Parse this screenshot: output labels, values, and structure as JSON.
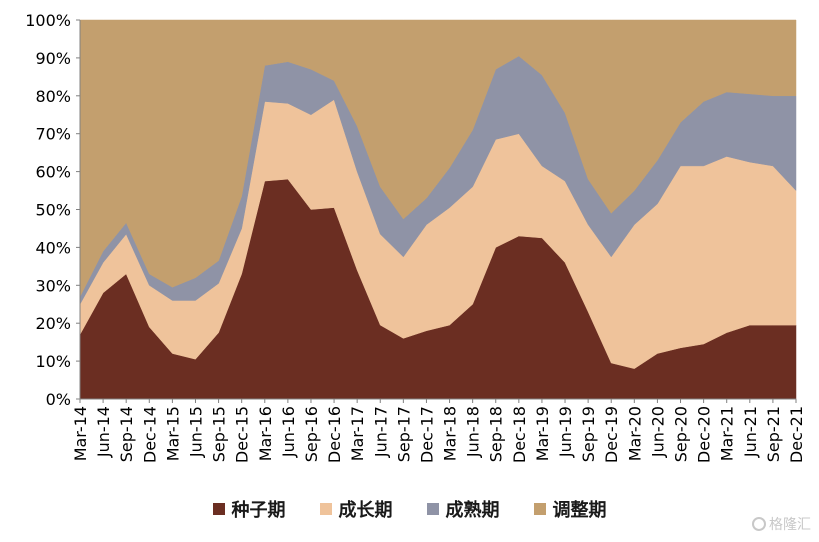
{
  "chart_data": {
    "type": "area",
    "stacked": true,
    "categories": [
      "Mar-14",
      "Jun-14",
      "Sep-14",
      "Dec-14",
      "Mar-15",
      "Jun-15",
      "Sep-15",
      "Dec-15",
      "Mar-16",
      "Jun-16",
      "Sep-16",
      "Dec-16",
      "Mar-17",
      "Jun-17",
      "Sep-17",
      "Dec-17",
      "Mar-18",
      "Jun-18",
      "Sep-18",
      "Dec-18",
      "Mar-19",
      "Jun-19",
      "Sep-19",
      "Dec-19",
      "Mar-20",
      "Jun-20",
      "Sep-20",
      "Dec-20",
      "Mar-21",
      "Jun-21",
      "Sep-21",
      "Dec-21"
    ],
    "y_tick_labels": [
      "0%",
      "10%",
      "20%",
      "30%",
      "40%",
      "50%",
      "60%",
      "70%",
      "80%",
      "90%",
      "100%"
    ],
    "ylim": [
      0,
      100
    ],
    "grid": false,
    "legend_position": "bottom",
    "series": [
      {
        "name": "种子期",
        "color": "#6B2E22",
        "values": [
          17,
          28,
          33,
          19,
          12,
          10.5,
          17.5,
          33,
          57.5,
          58,
          50,
          50.5,
          34,
          19.5,
          16,
          18,
          19.5,
          25,
          40,
          43,
          42.5,
          36,
          23,
          9.5,
          8,
          12,
          13.5,
          14.5,
          17.5,
          19.5,
          19.5,
          19.5
        ]
      },
      {
        "name": "成长期",
        "color": "#EFC39B",
        "values": [
          8,
          8,
          10.5,
          11,
          14,
          15.5,
          13,
          12,
          21,
          20,
          25,
          28.5,
          26,
          24,
          21.5,
          28,
          31,
          31,
          28.5,
          27,
          19,
          21.5,
          23,
          28,
          38,
          39.5,
          48,
          47,
          46.5,
          43,
          42,
          35.5
        ]
      },
      {
        "name": "成熟期",
        "color": "#8F93A6",
        "values": [
          2,
          3,
          3,
          3,
          3.5,
          6,
          6,
          8.5,
          9.5,
          11,
          12,
          5,
          12,
          12.5,
          10,
          7,
          10.5,
          15,
          18.5,
          20.5,
          24,
          18,
          12,
          11.5,
          9,
          11.5,
          11.5,
          17,
          17,
          18,
          18.5,
          25
        ]
      },
      {
        "name": "调整期",
        "color": "#C39F6E",
        "values": [
          73,
          61,
          53.5,
          67,
          70.5,
          68,
          63.5,
          46.5,
          12,
          11,
          13,
          16,
          28,
          44,
          52.5,
          47,
          39,
          29,
          13,
          9.5,
          14.5,
          24.5,
          42,
          51,
          45,
          37,
          27,
          21.5,
          19,
          19.5,
          20,
          20
        ]
      }
    ]
  },
  "watermark": {
    "text": "格隆汇"
  }
}
